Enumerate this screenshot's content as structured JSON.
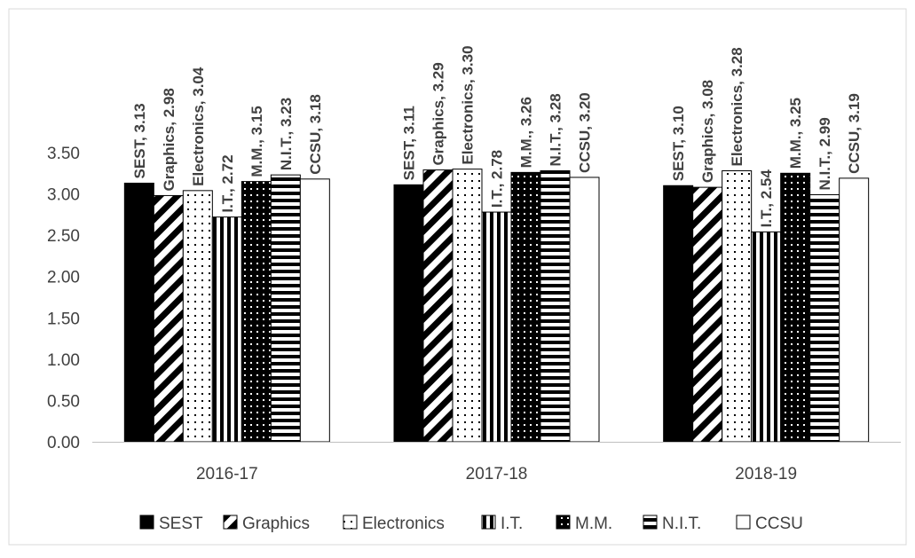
{
  "chart_data": {
    "type": "bar",
    "title": "",
    "xlabel": "",
    "ylabel": "",
    "ylim": [
      0,
      3.5
    ],
    "yticks": [
      "0.00",
      "0.50",
      "1.00",
      "1.50",
      "2.00",
      "2.50",
      "3.00",
      "3.50"
    ],
    "grid": false,
    "legend_position": "bottom",
    "categories": [
      "2016-17",
      "2017-18",
      "2018-19"
    ],
    "series": [
      {
        "name": "SEST",
        "pattern": "solid",
        "values": [
          3.13,
          3.11,
          3.1
        ],
        "labels": [
          "SEST, 3.13",
          "SEST, 3.11",
          "SEST, 3.10"
        ]
      },
      {
        "name": "Graphics",
        "pattern": "diagonal",
        "values": [
          2.98,
          3.29,
          3.08
        ],
        "labels": [
          "Graphics, 2.98",
          "Graphics, 3.29",
          "Graphics, 3.08"
        ]
      },
      {
        "name": "Electronics",
        "pattern": "dotted",
        "values": [
          3.04,
          3.3,
          3.28
        ],
        "labels": [
          "Electronics, 3.04",
          "Electronics, 3.30",
          "Electronics, 3.28"
        ]
      },
      {
        "name": "I.T.",
        "pattern": "vertical",
        "values": [
          2.72,
          2.78,
          2.54
        ],
        "labels": [
          "I.T., 2.72",
          "I.T., 2.78",
          "I.T., 2.54"
        ]
      },
      {
        "name": "M.M.",
        "pattern": "dark-dotted",
        "values": [
          3.15,
          3.26,
          3.25
        ],
        "labels": [
          "M.M., 3.15",
          "M.M., 3.26",
          "M.M., 3.25"
        ]
      },
      {
        "name": "N.I.T.",
        "pattern": "horizontal",
        "values": [
          3.23,
          3.28,
          2.99
        ],
        "labels": [
          "N.I.T., 3.23",
          "N.I.T., 3.28",
          "N.I.T., 2.99"
        ]
      },
      {
        "name": "CCSU",
        "pattern": "empty",
        "values": [
          3.18,
          3.2,
          3.19
        ],
        "labels": [
          "CCSU, 3.18",
          "CCSU, 3.20",
          "CCSU, 3.19"
        ]
      }
    ],
    "colors": {
      "stroke": "#000000",
      "fill": "#ffffff",
      "text": "#404040",
      "axis": "#bfbfbf"
    }
  }
}
